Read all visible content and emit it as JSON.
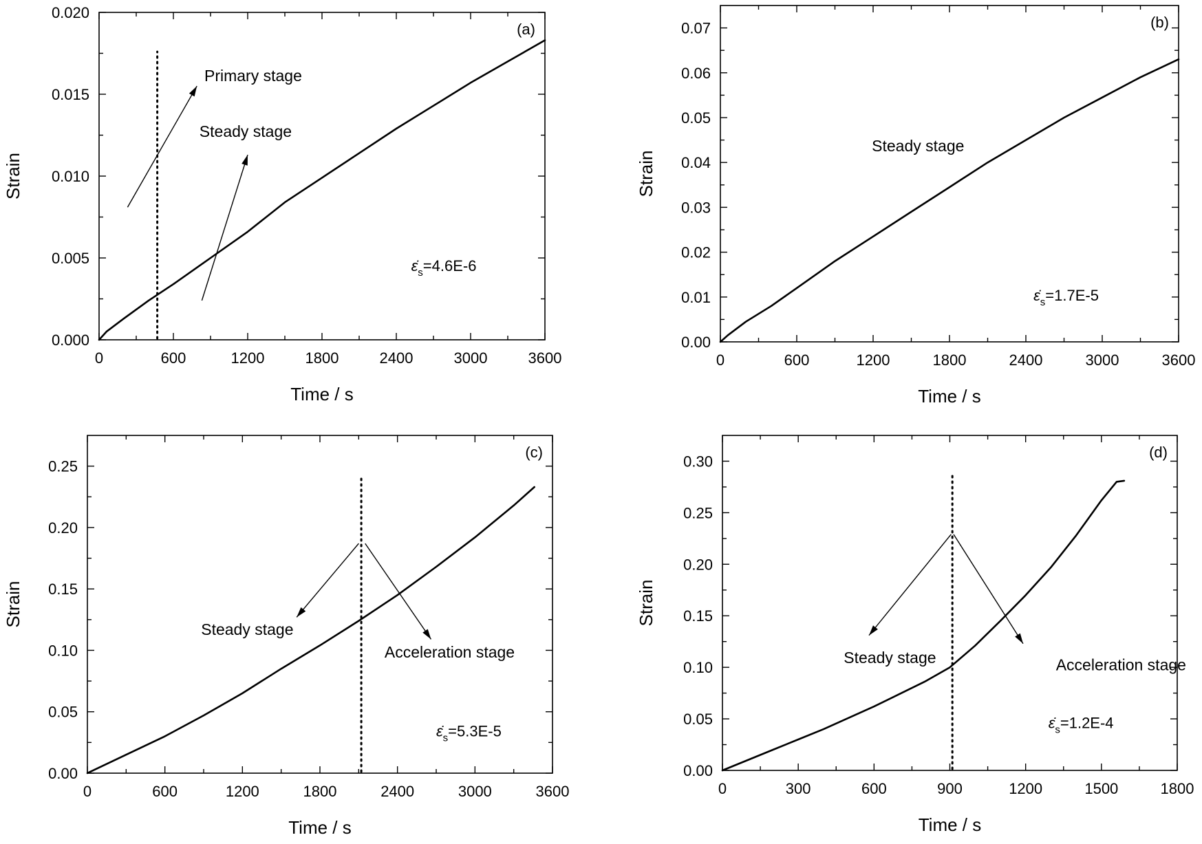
{
  "chart_data": [
    {
      "panel": "(a)",
      "type": "line",
      "xlabel": "Time / s",
      "ylabel": "Strain",
      "xlim": [
        0,
        3600
      ],
      "ylim": [
        0,
        0.02
      ],
      "xticks": [
        0,
        600,
        1200,
        1800,
        2400,
        3000,
        3600
      ],
      "xtick_labels": [
        "0",
        "600",
        "1200",
        "1800",
        "2400",
        "3000",
        "3600"
      ],
      "yticks": [
        0,
        0.005,
        0.01,
        0.015,
        0.02
      ],
      "ytick_labels": [
        "0.000",
        "0.005",
        "0.010",
        "0.015",
        "0.020"
      ],
      "series": [
        {
          "x": [
            0,
            60,
            200,
            400,
            600,
            900,
            1200,
            1500,
            1800,
            2100,
            2400,
            2700,
            3000,
            3300,
            3600
          ],
          "y": [
            0,
            0.0005,
            0.0013,
            0.0024,
            0.0034,
            0.005,
            0.0066,
            0.0084,
            0.0099,
            0.0114,
            0.0129,
            0.0143,
            0.0157,
            0.017,
            0.0183
          ]
        }
      ],
      "vline_x": 470,
      "annotations": [
        {
          "text": "Primary stage",
          "x": 850,
          "y": 0.0158,
          "from": [
            230,
            0.0081
          ],
          "to": [
            790,
            0.0155
          ]
        },
        {
          "text": "Steady stage",
          "x": 810,
          "y": 0.0124,
          "from": [
            830,
            0.0024
          ],
          "to": [
            1200,
            0.0113
          ]
        }
      ],
      "rate_label": {
        "symbol": "ε̇",
        "sub": "s",
        "value": "=4.6E-6",
        "x": 2520,
        "y": 0.0042
      }
    },
    {
      "panel": "(b)",
      "type": "line",
      "xlabel": "Time / s",
      "ylabel": "Strain",
      "xlim": [
        0,
        3600
      ],
      "ylim": [
        0,
        0.075
      ],
      "xticks": [
        0,
        600,
        1200,
        1800,
        2400,
        3000,
        3600
      ],
      "xtick_labels": [
        "0",
        "600",
        "1200",
        "1800",
        "2400",
        "3000",
        "3600"
      ],
      "yticks": [
        0,
        0.01,
        0.02,
        0.03,
        0.04,
        0.05,
        0.06,
        0.07
      ],
      "ytick_labels": [
        "0.00",
        "0.01",
        "0.02",
        "0.03",
        "0.04",
        "0.05",
        "0.06",
        "0.07"
      ],
      "series": [
        {
          "x": [
            0,
            60,
            200,
            400,
            600,
            900,
            1200,
            1500,
            1800,
            2100,
            2400,
            2700,
            3000,
            3300,
            3600
          ],
          "y": [
            0,
            0.0015,
            0.0045,
            0.008,
            0.012,
            0.018,
            0.0235,
            0.029,
            0.0345,
            0.04,
            0.045,
            0.05,
            0.0545,
            0.059,
            0.063
          ]
        }
      ],
      "annotations": [
        {
          "text": "Steady stage",
          "x": 1190,
          "y": 0.0425
        }
      ],
      "rate_label": {
        "symbol": "ε̇",
        "sub": "s",
        "value": "=1.7E-5",
        "x": 2460,
        "y": 0.0092
      }
    },
    {
      "panel": "(c)",
      "type": "line",
      "xlabel": "Time / s",
      "ylabel": "Strain",
      "xlim": [
        0,
        3600
      ],
      "ylim": [
        0,
        0.275
      ],
      "xticks": [
        0,
        600,
        1200,
        1800,
        2400,
        3000,
        3600
      ],
      "xtick_labels": [
        "0",
        "600",
        "1200",
        "1800",
        "2400",
        "3000",
        "3600"
      ],
      "yticks": [
        0,
        0.05,
        0.1,
        0.15,
        0.2,
        0.25
      ],
      "ytick_labels": [
        "0.00",
        "0.05",
        "0.10",
        "0.15",
        "0.20",
        "0.25"
      ],
      "series": [
        {
          "x": [
            0,
            300,
            600,
            900,
            1200,
            1500,
            1800,
            2100,
            2400,
            2700,
            3000,
            3300,
            3460
          ],
          "y": [
            0,
            0.015,
            0.03,
            0.047,
            0.065,
            0.085,
            0.104,
            0.124,
            0.145,
            0.168,
            0.192,
            0.218,
            0.233
          ]
        }
      ],
      "vline_x": 2120,
      "annotations": [
        {
          "text": "Steady stage",
          "x": 880,
          "y": 0.1125,
          "from": [
            2100,
            0.187
          ],
          "to": [
            1620,
            0.127
          ]
        },
        {
          "text": "Acceleration stage",
          "x": 2300,
          "y": 0.094,
          "from": [
            2150,
            0.187
          ],
          "to": [
            2660,
            0.109
          ]
        }
      ],
      "rate_label": {
        "symbol": "ε̇",
        "sub": "s",
        "value": "=5.3E-5",
        "x": 2700,
        "y": 0.03
      }
    },
    {
      "panel": "(d)",
      "type": "line",
      "xlabel": "Time / s",
      "ylabel": "Strain",
      "xlim": [
        0,
        1800
      ],
      "ylim": [
        0,
        0.325
      ],
      "xticks": [
        0,
        300,
        600,
        900,
        1200,
        1500,
        1800
      ],
      "xtick_labels": [
        "0",
        "300",
        "600",
        "900",
        "1200",
        "1500",
        "1800"
      ],
      "yticks": [
        0,
        0.05,
        0.1,
        0.15,
        0.2,
        0.25,
        0.3
      ],
      "ytick_labels": [
        "0.00",
        "0.05",
        "0.10",
        "0.15",
        "0.20",
        "0.25",
        "0.30"
      ],
      "series": [
        {
          "x": [
            0,
            100,
            200,
            300,
            400,
            500,
            600,
            700,
            800,
            900,
            1000,
            1100,
            1200,
            1300,
            1400,
            1500,
            1560,
            1590
          ],
          "y": [
            0,
            0.01,
            0.02,
            0.03,
            0.04,
            0.051,
            0.062,
            0.074,
            0.086,
            0.1,
            0.121,
            0.145,
            0.17,
            0.197,
            0.228,
            0.262,
            0.28,
            0.281
          ]
        }
      ],
      "vline_x": 910,
      "annotations": [
        {
          "text": "Steady stage",
          "x": 480,
          "y": 0.104,
          "from": [
            905,
            0.229
          ],
          "to": [
            580,
            0.131
          ]
        },
        {
          "text": "Acceleration stage",
          "x": 1320,
          "y": 0.097,
          "from": [
            915,
            0.229
          ],
          "to": [
            1190,
            0.123
          ]
        }
      ],
      "rate_label": {
        "symbol": "ε̇",
        "sub": "s",
        "value": "=1.2E-4",
        "x": 1290,
        "y": 0.041
      }
    }
  ]
}
